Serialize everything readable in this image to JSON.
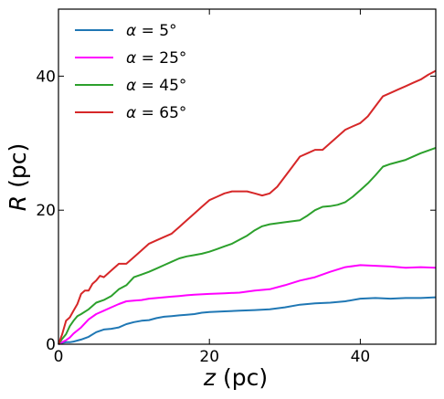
{
  "chart_data": {
    "type": "line",
    "xlabel": {
      "symbol": "z",
      "unit": " (pc)"
    },
    "ylabel": {
      "symbol": "R",
      "unit": " (pc)"
    },
    "xlim": [
      0,
      50
    ],
    "ylim": [
      0,
      50
    ],
    "xticks": [
      0,
      20,
      40
    ],
    "yticks": [
      0,
      20,
      40
    ],
    "grid": false,
    "legend_position": "top-left",
    "series": [
      {
        "name": "α = 5°",
        "color": "#1f77b4",
        "points": [
          [
            0,
            0
          ],
          [
            0.5,
            0.2
          ],
          [
            1,
            0.3
          ],
          [
            1.5,
            0.3
          ],
          [
            2,
            0.4
          ],
          [
            3,
            0.7
          ],
          [
            4,
            1.1
          ],
          [
            5,
            1.8
          ],
          [
            6,
            2.2
          ],
          [
            7,
            2.3
          ],
          [
            8,
            2.5
          ],
          [
            9,
            3.0
          ],
          [
            10,
            3.3
          ],
          [
            11,
            3.5
          ],
          [
            12,
            3.6
          ],
          [
            13,
            3.9
          ],
          [
            14,
            4.1
          ],
          [
            15,
            4.2
          ],
          [
            16,
            4.3
          ],
          [
            17,
            4.4
          ],
          [
            18,
            4.5
          ],
          [
            19,
            4.7
          ],
          [
            20,
            4.8
          ],
          [
            22,
            4.9
          ],
          [
            24,
            5.0
          ],
          [
            26,
            5.1
          ],
          [
            28,
            5.2
          ],
          [
            30,
            5.5
          ],
          [
            32,
            5.9
          ],
          [
            34,
            6.1
          ],
          [
            36,
            6.2
          ],
          [
            38,
            6.4
          ],
          [
            40,
            6.8
          ],
          [
            42,
            6.9
          ],
          [
            44,
            6.8
          ],
          [
            46,
            6.9
          ],
          [
            48,
            6.9
          ],
          [
            50,
            7.0
          ]
        ]
      },
      {
        "name": "α = 25°",
        "color": "#ff00ff",
        "points": [
          [
            0,
            0
          ],
          [
            0.5,
            0.3
          ],
          [
            1,
            0.6
          ],
          [
            1.5,
            1.0
          ],
          [
            2,
            1.6
          ],
          [
            3,
            2.5
          ],
          [
            4,
            3.7
          ],
          [
            5,
            4.5
          ],
          [
            6,
            5.0
          ],
          [
            7,
            5.5
          ],
          [
            8,
            6.0
          ],
          [
            9,
            6.4
          ],
          [
            10,
            6.5
          ],
          [
            11,
            6.6
          ],
          [
            12,
            6.8
          ],
          [
            13,
            6.9
          ],
          [
            14,
            7.0
          ],
          [
            15,
            7.1
          ],
          [
            16,
            7.2
          ],
          [
            17,
            7.3
          ],
          [
            18,
            7.4
          ],
          [
            20,
            7.5
          ],
          [
            22,
            7.6
          ],
          [
            24,
            7.7
          ],
          [
            26,
            8.0
          ],
          [
            28,
            8.2
          ],
          [
            30,
            8.8
          ],
          [
            32,
            9.5
          ],
          [
            34,
            10.0
          ],
          [
            36,
            10.8
          ],
          [
            38,
            11.5
          ],
          [
            40,
            11.8
          ],
          [
            42,
            11.7
          ],
          [
            44,
            11.6
          ],
          [
            46,
            11.4
          ],
          [
            48,
            11.5
          ],
          [
            50,
            11.4
          ]
        ]
      },
      {
        "name": "α = 45°",
        "color": "#2ca02c",
        "points": [
          [
            0,
            0
          ],
          [
            0.5,
            0.8
          ],
          [
            1,
            1.5
          ],
          [
            1.5,
            2.7
          ],
          [
            2,
            3.5
          ],
          [
            2.5,
            4.2
          ],
          [
            3,
            4.5
          ],
          [
            4,
            5.2
          ],
          [
            5,
            6.2
          ],
          [
            6,
            6.6
          ],
          [
            7,
            7.2
          ],
          [
            8,
            8.2
          ],
          [
            9,
            8.8
          ],
          [
            10,
            10.0
          ],
          [
            11,
            10.4
          ],
          [
            12,
            10.8
          ],
          [
            13,
            11.3
          ],
          [
            14,
            11.8
          ],
          [
            15,
            12.3
          ],
          [
            16,
            12.8
          ],
          [
            17,
            13.1
          ],
          [
            18,
            13.3
          ],
          [
            19,
            13.5
          ],
          [
            20,
            13.8
          ],
          [
            21,
            14.2
          ],
          [
            22,
            14.6
          ],
          [
            23,
            15.0
          ],
          [
            24,
            15.6
          ],
          [
            25,
            16.2
          ],
          [
            26,
            17.0
          ],
          [
            27,
            17.6
          ],
          [
            28,
            17.9
          ],
          [
            30,
            18.2
          ],
          [
            32,
            18.5
          ],
          [
            33,
            19.2
          ],
          [
            34,
            20.0
          ],
          [
            35,
            20.5
          ],
          [
            36,
            20.6
          ],
          [
            37,
            20.8
          ],
          [
            38,
            21.2
          ],
          [
            39,
            22.0
          ],
          [
            40,
            23.0
          ],
          [
            41,
            24.0
          ],
          [
            42,
            25.2
          ],
          [
            43,
            26.5
          ],
          [
            44,
            26.9
          ],
          [
            46,
            27.5
          ],
          [
            48,
            28.5
          ],
          [
            50,
            29.3
          ]
        ]
      },
      {
        "name": "α = 65°",
        "color": "#d62728",
        "points": [
          [
            0,
            0
          ],
          [
            0.5,
            1.5
          ],
          [
            1,
            3.5
          ],
          [
            1.5,
            4.0
          ],
          [
            2,
            5.0
          ],
          [
            2.5,
            6.0
          ],
          [
            3,
            7.5
          ],
          [
            3.5,
            8.0
          ],
          [
            4,
            8.0
          ],
          [
            4.5,
            9.0
          ],
          [
            5,
            9.5
          ],
          [
            5.5,
            10.2
          ],
          [
            6,
            10.0
          ],
          [
            7,
            11.0
          ],
          [
            8,
            12.0
          ],
          [
            9,
            12.0
          ],
          [
            10,
            13.0
          ],
          [
            11,
            14.0
          ],
          [
            12,
            15.0
          ],
          [
            13,
            15.5
          ],
          [
            14,
            16.0
          ],
          [
            15,
            16.5
          ],
          [
            16,
            17.5
          ],
          [
            17,
            18.5
          ],
          [
            18,
            19.5
          ],
          [
            19,
            20.5
          ],
          [
            20,
            21.5
          ],
          [
            21,
            22.0
          ],
          [
            22,
            22.5
          ],
          [
            23,
            22.8
          ],
          [
            24,
            22.8
          ],
          [
            25,
            22.8
          ],
          [
            26,
            22.5
          ],
          [
            27,
            22.2
          ],
          [
            28,
            22.5
          ],
          [
            29,
            23.5
          ],
          [
            30,
            25.0
          ],
          [
            31,
            26.5
          ],
          [
            32,
            28.0
          ],
          [
            33,
            28.5
          ],
          [
            34,
            29.0
          ],
          [
            35,
            29.0
          ],
          [
            36,
            30.0
          ],
          [
            37,
            31.0
          ],
          [
            38,
            32.0
          ],
          [
            39,
            32.5
          ],
          [
            40,
            33.0
          ],
          [
            41,
            34.0
          ],
          [
            42,
            35.5
          ],
          [
            43,
            37.0
          ],
          [
            44,
            37.5
          ],
          [
            45,
            38.0
          ],
          [
            46,
            38.5
          ],
          [
            47,
            39.0
          ],
          [
            48,
            39.5
          ],
          [
            49,
            40.2
          ],
          [
            50,
            40.8
          ]
        ]
      }
    ]
  }
}
